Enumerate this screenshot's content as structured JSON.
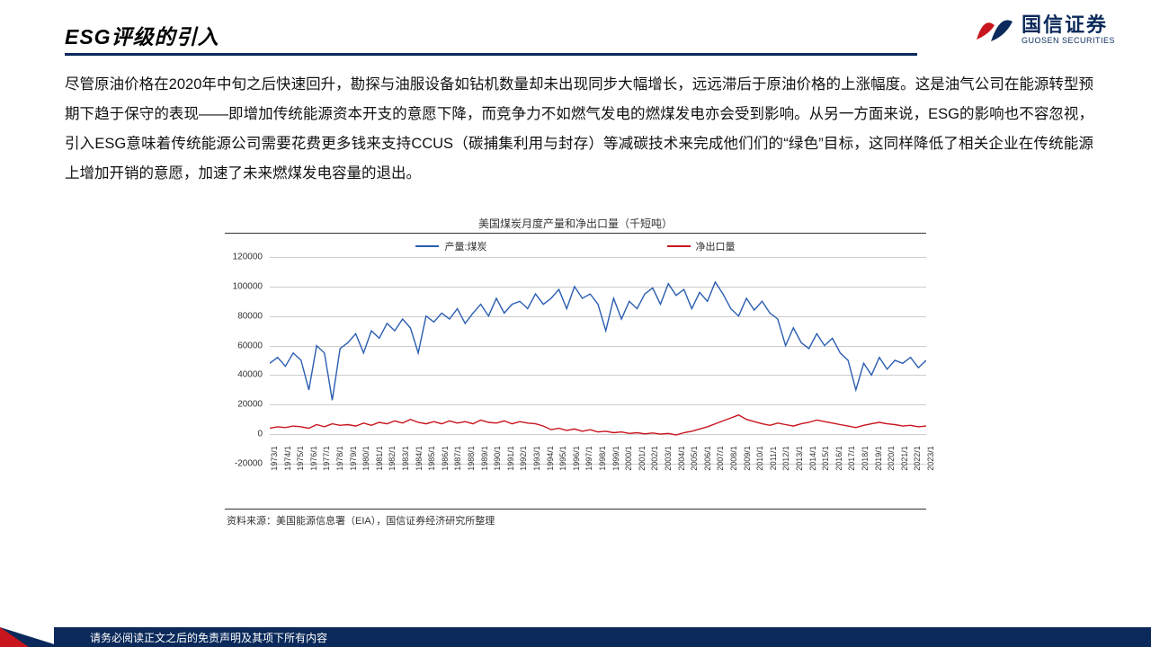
{
  "header": {
    "title": "ESG评级的引入",
    "logo_cn": "国信证券",
    "logo_en": "GUOSEN SECURITIES",
    "logo_colors": {
      "red": "#c9151d",
      "blue": "#0b2a5b"
    }
  },
  "paragraph": "尽管原油价格在2020年中旬之后快速回升，勘探与油服设备如钻机数量却未出现同步大幅增长，远远滞后于原油价格的上涨幅度。这是油气公司在能源转型预期下趋于保守的表现——即增加传统能源资本开支的意愿下降，而竞争力不如燃气发电的燃煤发电亦会受到影响。从另一方面来说，ESG的影响也不容忽视，引入ESG意味着传统能源公司需要花费更多钱来支持CCUS（碳捕集利用与封存）等减碳技术来完成他们们的“绿色”目标，这同样降低了相关企业在传统能源上增加开销的意愿，加速了未来燃煤发电容量的退出。",
  "chart": {
    "type": "line",
    "title": "美国煤炭月度产量和净出口量（千短吨）",
    "source": "资料来源：美国能源信息署（EIA），国信证券经济研究所整理",
    "legend": [
      {
        "label": "产量:煤炭",
        "color": "#2a5db0"
      },
      {
        "label": "净出口量",
        "color": "#c9151d"
      }
    ],
    "y": {
      "min": -20000,
      "max": 120000,
      "step": 20000,
      "fontsize": 10
    },
    "x": {
      "labels": [
        "1973/1",
        "1974/1",
        "1975/1",
        "1976/1",
        "1977/1",
        "1978/1",
        "1979/1",
        "1980/1",
        "1981/1",
        "1982/1",
        "1983/1",
        "1984/1",
        "1985/1",
        "1986/1",
        "1987/1",
        "1988/1",
        "1989/1",
        "1990/1",
        "1991/1",
        "1992/1",
        "1993/1",
        "1994/1",
        "1995/1",
        "1996/1",
        "1997/1",
        "1998/1",
        "1999/1",
        "2000/1",
        "2001/1",
        "2002/1",
        "2003/1",
        "2004/1",
        "2005/1",
        "2006/1",
        "2007/1",
        "2008/1",
        "2009/1",
        "2010/1",
        "2011/1",
        "2012/1",
        "2013/1",
        "2014/1",
        "2015/1",
        "2016/1",
        "2017/1",
        "2018/1",
        "2019/1",
        "2020/1",
        "2021/1",
        "2022/1",
        "2023/1"
      ],
      "fontsize": 9
    },
    "grid_color": "#cccccc",
    "background_color": "#ffffff",
    "line_width": 1.4,
    "series": {
      "production": [
        48000,
        52000,
        46000,
        55000,
        50000,
        30000,
        60000,
        55000,
        23000,
        58000,
        62000,
        68000,
        55000,
        70000,
        65000,
        75000,
        70000,
        78000,
        72000,
        55000,
        80000,
        76000,
        82000,
        78000,
        85000,
        75000,
        82000,
        88000,
        80000,
        92000,
        82000,
        88000,
        90000,
        85000,
        95000,
        88000,
        92000,
        98000,
        85000,
        100000,
        92000,
        95000,
        88000,
        70000,
        92000,
        78000,
        90000,
        85000,
        95000,
        99000,
        88000,
        102000,
        94000,
        98000,
        85000,
        96000,
        90000,
        103000,
        95000,
        85000,
        80000,
        92000,
        84000,
        90000,
        82000,
        78000,
        60000,
        72000,
        62000,
        58000,
        68000,
        60000,
        65000,
        55000,
        50000,
        30000,
        48000,
        40000,
        52000,
        44000,
        50000,
        48000,
        52000,
        45000,
        50000
      ],
      "net_export": [
        4000,
        5000,
        4500,
        5500,
        5000,
        4000,
        6500,
        5000,
        7000,
        6000,
        6500,
        5500,
        7500,
        6000,
        8000,
        7000,
        9000,
        7500,
        10000,
        8000,
        7000,
        8500,
        7000,
        9000,
        7500,
        8500,
        7000,
        9500,
        8000,
        7500,
        9000,
        7000,
        8500,
        7500,
        7000,
        5500,
        3000,
        4000,
        2500,
        3500,
        2000,
        3000,
        1500,
        2000,
        1000,
        1500,
        500,
        1000,
        200,
        800,
        0,
        500,
        -500,
        1000,
        2000,
        3500,
        5000,
        7000,
        9000,
        11000,
        13000,
        10000,
        8500,
        7000,
        6000,
        7500,
        6500,
        5500,
        7000,
        8000,
        9500,
        8500,
        7500,
        6500,
        5500,
        4500,
        6000,
        7000,
        8000,
        7000,
        6500,
        5500,
        6000,
        5000,
        5500
      ]
    }
  },
  "footer": "请务必阅读正文之后的免责声明及其项下所有内容"
}
